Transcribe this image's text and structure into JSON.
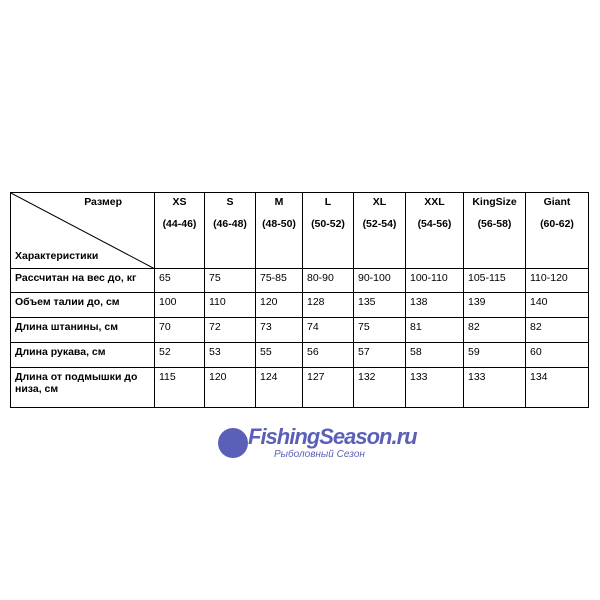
{
  "header": {
    "corner_top": "Размер",
    "corner_bottom": "Характеристики"
  },
  "sizes": [
    {
      "name": "XS",
      "range": "(44-46)"
    },
    {
      "name": "S",
      "range": "(46-48)"
    },
    {
      "name": "M",
      "range": "(48-50)"
    },
    {
      "name": "L",
      "range": "(50-52)"
    },
    {
      "name": "XL",
      "range": "(52-54)"
    },
    {
      "name": "XXL",
      "range": "(54-56)"
    },
    {
      "name": "KingSize",
      "range": "(56-58)"
    },
    {
      "name": "Giant",
      "range": "(60-62)"
    }
  ],
  "rows": [
    {
      "label": "Рассчитан на вес до, кг",
      "values": [
        "65",
        "75",
        "75-85",
        "80-90",
        "90-100",
        "100-110",
        "105-115",
        "110-120"
      ]
    },
    {
      "label": "Объем талии до, см",
      "values": [
        "100",
        "110",
        "120",
        "128",
        "135",
        "138",
        "139",
        "140"
      ]
    },
    {
      "label": "Длина штанины, см",
      "values": [
        "70",
        "72",
        "73",
        "74",
        "75",
        "81",
        "82",
        "82"
      ]
    },
    {
      "label": "Длина рукава, см",
      "values": [
        "52",
        "53",
        "55",
        "56",
        "57",
        "58",
        "59",
        "60"
      ]
    },
    {
      "label": "Длина от подмышки до низа, см",
      "values": [
        "115",
        "120",
        "124",
        "127",
        "132",
        "133",
        "133",
        "134"
      ]
    }
  ],
  "watermark": {
    "title": "FishingSeason.ru",
    "subtitle": "Рыболовный Сезон"
  }
}
